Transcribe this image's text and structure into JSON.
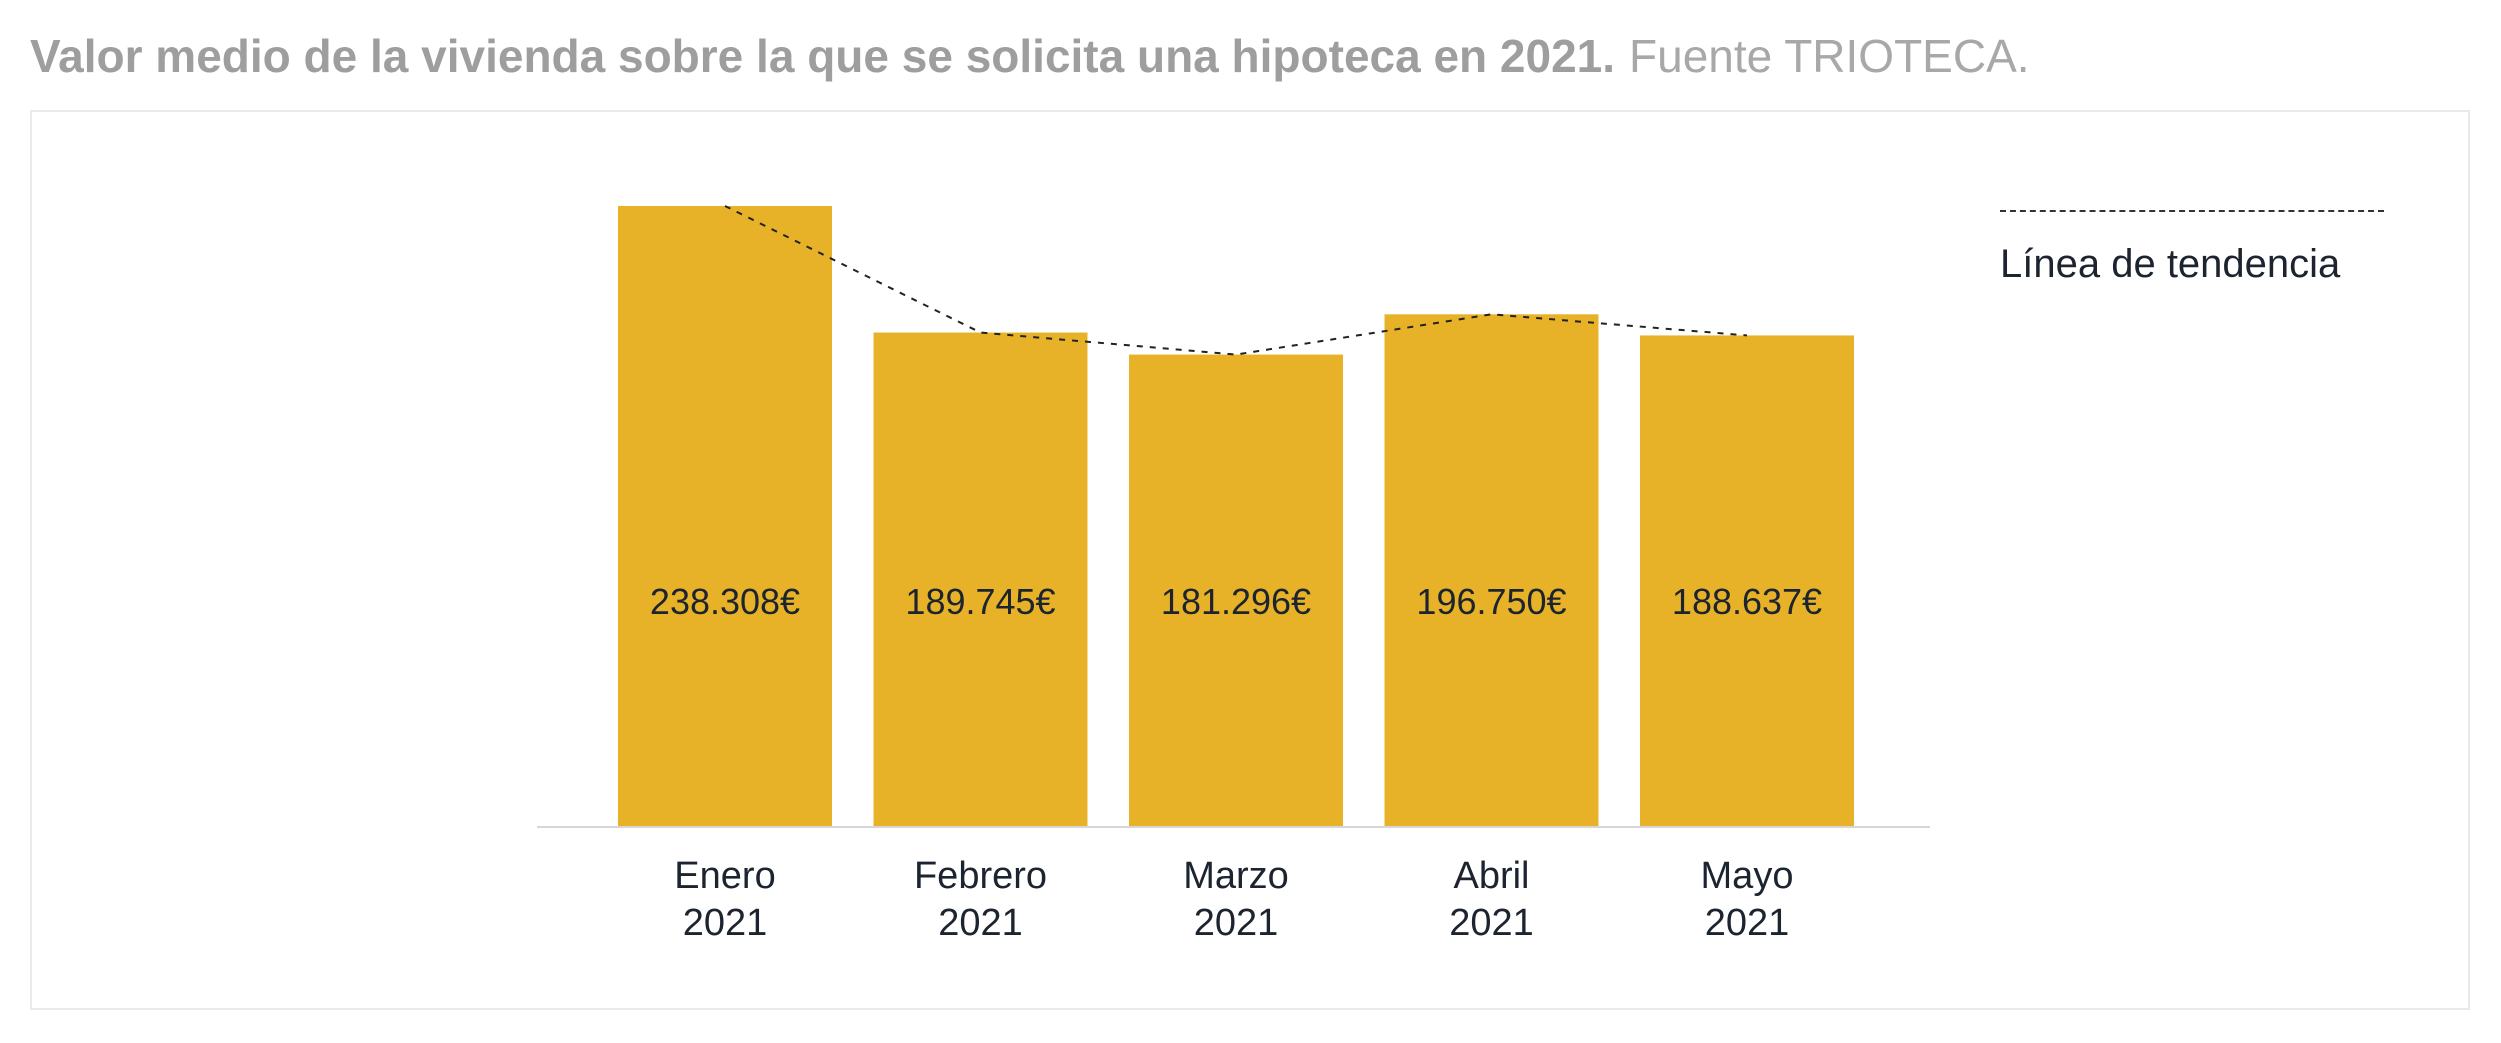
{
  "header": {
    "title": "Valor medio de la vivienda sobre la que se solicita una hipoteca en 2021.",
    "source": "Fuente TRIOTECA."
  },
  "legend": {
    "label": "Línea de tendencia"
  },
  "colors": {
    "bar": "#e8b228",
    "trend": "#222222",
    "axis": "#d6d6d6",
    "text": "#1c2430"
  },
  "chart_data": {
    "type": "bar",
    "categories": [
      [
        "Enero",
        "2021"
      ],
      [
        "Febrero",
        "2021"
      ],
      [
        "Marzo",
        "2021"
      ],
      [
        "Abril",
        "2021"
      ],
      [
        "Mayo",
        "2021"
      ]
    ],
    "values": [
      238308,
      189745,
      181296,
      196750,
      188637
    ],
    "value_labels": [
      "238.308€",
      "189.745€",
      "181.296€",
      "196.750€",
      "188.637€"
    ],
    "trend_values": [
      238308,
      189745,
      181296,
      196750,
      188637
    ],
    "ylim": [
      0,
      238308
    ],
    "grid": false,
    "legend_position": "top-right"
  }
}
